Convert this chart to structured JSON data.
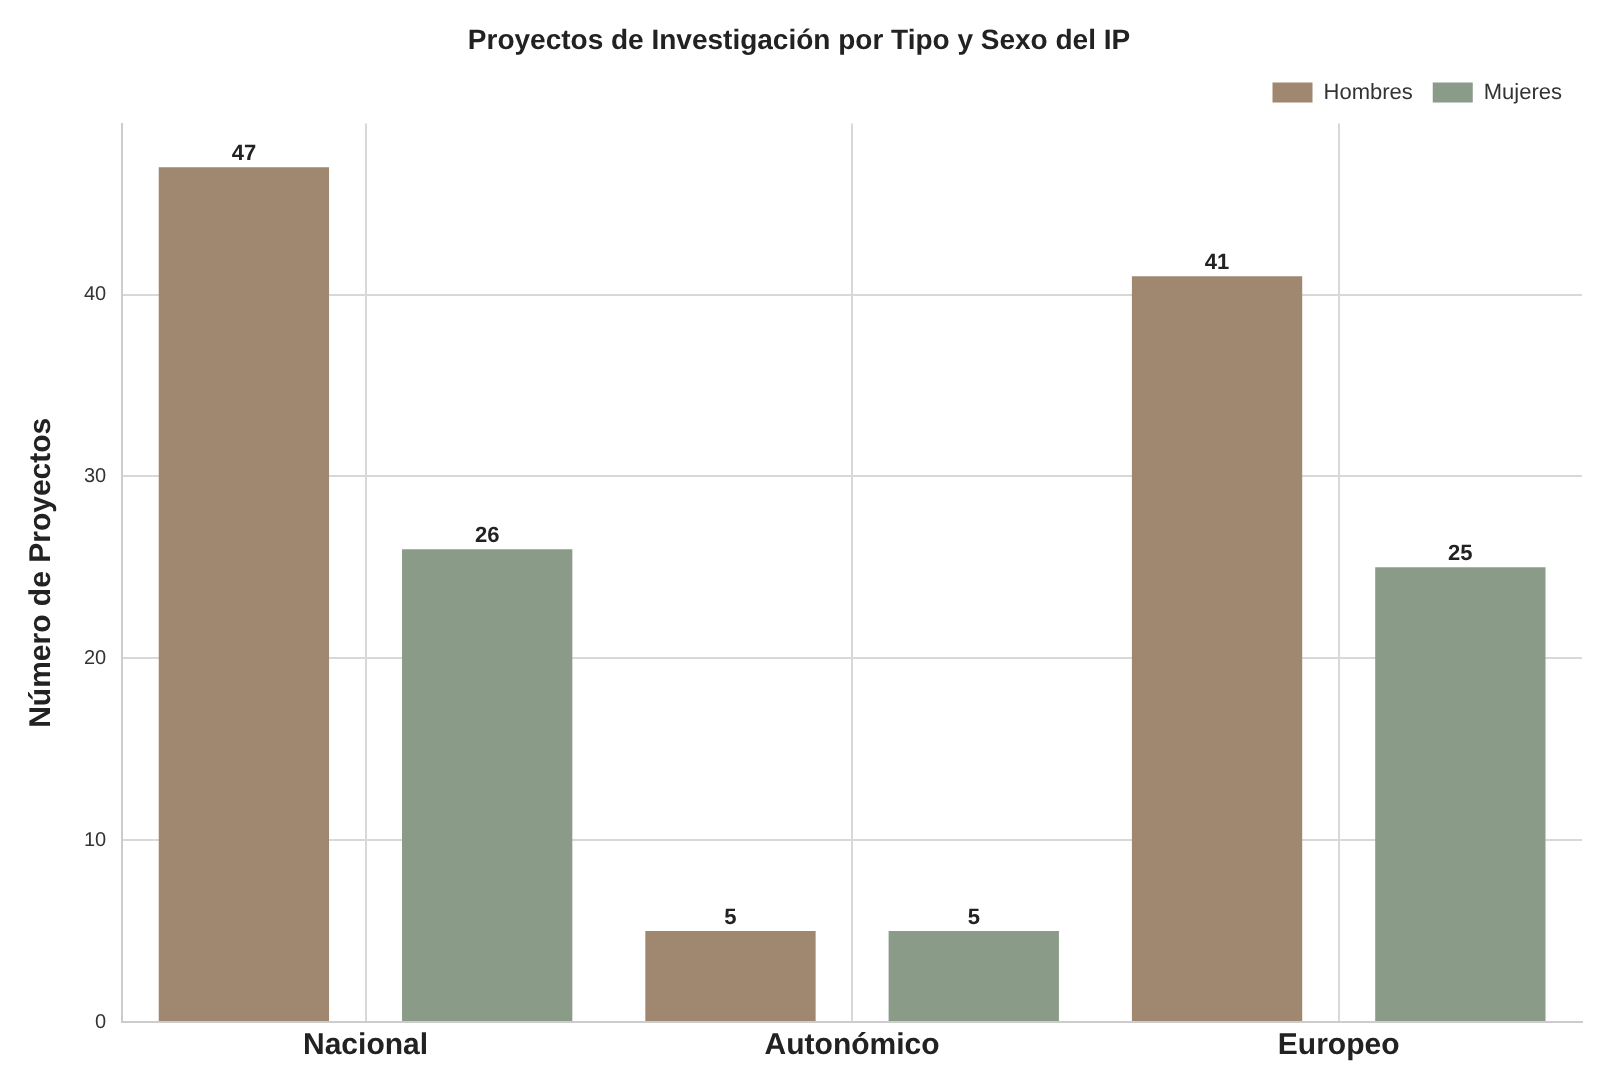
{
  "chart_data": {
    "type": "bar",
    "title": "Proyectos de Investigación por Tipo y Sexo del IP",
    "ylabel": "Número de Proyectos",
    "categories": [
      "Nacional",
      "Autonómico",
      "Europeo"
    ],
    "series": [
      {
        "name": "Hombres",
        "color": "#a0876f",
        "values": [
          47,
          5,
          41
        ]
      },
      {
        "name": "Mujeres",
        "color": "#8a9b88",
        "values": [
          26,
          5,
          25
        ]
      }
    ],
    "ylim": [
      0,
      49.4
    ],
    "yticks": [
      0,
      10,
      20,
      30,
      40
    ],
    "grid": true,
    "legend": "top right",
    "data_labels": true
  }
}
